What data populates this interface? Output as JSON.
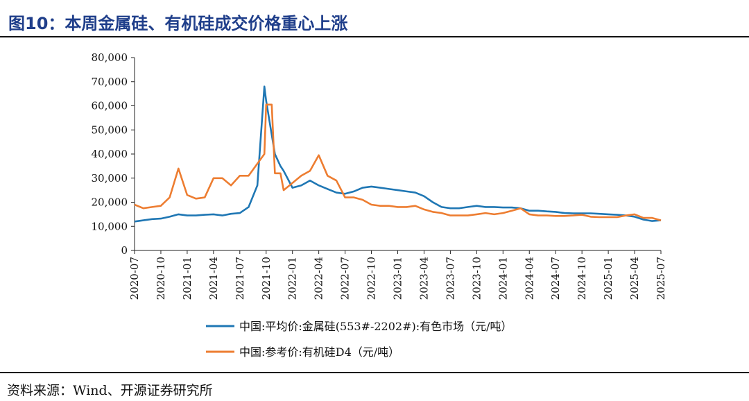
{
  "figure": {
    "title": "图10：本周金属硅、有机硅成交价格重心上涨",
    "source": "资料来源：Wind、开源证券研究所"
  },
  "chart_data": {
    "type": "line",
    "title": "图10：本周金属硅、有机硅成交价格重心上涨",
    "xlabel": "",
    "ylabel": "",
    "ylim": [
      0,
      80000
    ],
    "y_ticks": [
      "0",
      "10,000",
      "20,000",
      "30,000",
      "40,000",
      "50,000",
      "60,000",
      "70,000",
      "80,000"
    ],
    "x_ticks": [
      "2020-07",
      "2020-10",
      "2021-01",
      "2021-04",
      "2021-07",
      "2021-10",
      "2022-01",
      "2022-04",
      "2022-07",
      "2022-10",
      "2023-01",
      "2023-04",
      "2023-07",
      "2023-10",
      "2024-01",
      "2024-04",
      "2024-07",
      "2024-10",
      "2025-01",
      "2025-04",
      "2025-07"
    ],
    "grid": false,
    "legend_position": "bottom",
    "series": [
      {
        "name": "中国:平均价:金属硅(553#-2202#):有色市场（元/吨）",
        "color": "#1f77b4",
        "points": [
          [
            "2020-07",
            12000
          ],
          [
            "2020-08",
            12500
          ],
          [
            "2020-09",
            13000
          ],
          [
            "2020-10",
            13200
          ],
          [
            "2020-11",
            14000
          ],
          [
            "2020-12",
            15000
          ],
          [
            "2021-01",
            14500
          ],
          [
            "2021-02",
            14500
          ],
          [
            "2021-03",
            14800
          ],
          [
            "2021-04",
            15000
          ],
          [
            "2021-05",
            14500
          ],
          [
            "2021-06",
            15200
          ],
          [
            "2021-07",
            15500
          ],
          [
            "2021-08",
            18000
          ],
          [
            "2021-09",
            27000
          ],
          [
            "2021-09-25",
            68000
          ],
          [
            "2021-10",
            62000
          ],
          [
            "2021-10-20",
            48000
          ],
          [
            "2021-11",
            40000
          ],
          [
            "2021-11-20",
            35000
          ],
          [
            "2021-12",
            33000
          ],
          [
            "2022-01",
            26000
          ],
          [
            "2022-02",
            27000
          ],
          [
            "2022-03",
            29000
          ],
          [
            "2022-04",
            27000
          ],
          [
            "2022-05",
            25500
          ],
          [
            "2022-06",
            24000
          ],
          [
            "2022-07",
            23500
          ],
          [
            "2022-08",
            24500
          ],
          [
            "2022-09",
            26000
          ],
          [
            "2022-10",
            26500
          ],
          [
            "2022-11",
            26000
          ],
          [
            "2022-12",
            25500
          ],
          [
            "2023-01",
            25000
          ],
          [
            "2023-02",
            24500
          ],
          [
            "2023-03",
            24000
          ],
          [
            "2023-04",
            22500
          ],
          [
            "2023-05",
            20000
          ],
          [
            "2023-06",
            18000
          ],
          [
            "2023-07",
            17500
          ],
          [
            "2023-08",
            17500
          ],
          [
            "2023-09",
            18000
          ],
          [
            "2023-10",
            18500
          ],
          [
            "2023-11",
            18000
          ],
          [
            "2023-12",
            18000
          ],
          [
            "2024-01",
            17800
          ],
          [
            "2024-02",
            17800
          ],
          [
            "2024-03",
            17500
          ],
          [
            "2024-04",
            16500
          ],
          [
            "2024-05",
            16500
          ],
          [
            "2024-06",
            16200
          ],
          [
            "2024-07",
            16000
          ],
          [
            "2024-08",
            15500
          ],
          [
            "2024-09",
            15400
          ],
          [
            "2024-10",
            15400
          ],
          [
            "2024-11",
            15400
          ],
          [
            "2024-12",
            15200
          ],
          [
            "2025-01",
            15000
          ],
          [
            "2025-02",
            14800
          ],
          [
            "2025-03",
            14500
          ],
          [
            "2025-04",
            14000
          ],
          [
            "2025-05",
            12800
          ],
          [
            "2025-06",
            12200
          ],
          [
            "2025-07",
            12500
          ]
        ]
      },
      {
        "name": "中国:参考价:有机硅D4（元/吨）",
        "color": "#ed7d31",
        "points": [
          [
            "2020-07",
            19000
          ],
          [
            "2020-08",
            17500
          ],
          [
            "2020-09",
            18000
          ],
          [
            "2020-10",
            18500
          ],
          [
            "2020-11",
            22000
          ],
          [
            "2020-12",
            34000
          ],
          [
            "2021-01",
            23000
          ],
          [
            "2021-02",
            21500
          ],
          [
            "2021-03",
            22000
          ],
          [
            "2021-04",
            30000
          ],
          [
            "2021-05",
            30000
          ],
          [
            "2021-06",
            27000
          ],
          [
            "2021-07",
            31000
          ],
          [
            "2021-08",
            31000
          ],
          [
            "2021-09",
            36000
          ],
          [
            "2021-09-25",
            40000
          ],
          [
            "2021-10",
            60500
          ],
          [
            "2021-10-20",
            60500
          ],
          [
            "2021-11",
            32000
          ],
          [
            "2021-11-20",
            32000
          ],
          [
            "2021-12",
            25000
          ],
          [
            "2022-01",
            28000
          ],
          [
            "2022-02",
            31000
          ],
          [
            "2022-03",
            33000
          ],
          [
            "2022-04",
            39500
          ],
          [
            "2022-05",
            31000
          ],
          [
            "2022-06",
            29000
          ],
          [
            "2022-07",
            22000
          ],
          [
            "2022-08",
            22000
          ],
          [
            "2022-09",
            21000
          ],
          [
            "2022-10",
            19000
          ],
          [
            "2022-11",
            18500
          ],
          [
            "2022-12",
            18500
          ],
          [
            "2023-01",
            18000
          ],
          [
            "2023-02",
            18000
          ],
          [
            "2023-03",
            18500
          ],
          [
            "2023-04",
            17000
          ],
          [
            "2023-05",
            16000
          ],
          [
            "2023-06",
            15500
          ],
          [
            "2023-07",
            14500
          ],
          [
            "2023-08",
            14500
          ],
          [
            "2023-09",
            14500
          ],
          [
            "2023-10",
            15000
          ],
          [
            "2023-11",
            15500
          ],
          [
            "2023-12",
            15000
          ],
          [
            "2024-01",
            15500
          ],
          [
            "2024-02",
            16500
          ],
          [
            "2024-03",
            17500
          ],
          [
            "2024-04",
            15000
          ],
          [
            "2024-05",
            14500
          ],
          [
            "2024-06",
            14500
          ],
          [
            "2024-07",
            14300
          ],
          [
            "2024-08",
            14300
          ],
          [
            "2024-09",
            14500
          ],
          [
            "2024-10",
            14800
          ],
          [
            "2024-11",
            14000
          ],
          [
            "2024-12",
            13800
          ],
          [
            "2025-01",
            13800
          ],
          [
            "2025-02",
            13800
          ],
          [
            "2025-03",
            14500
          ],
          [
            "2025-04",
            15000
          ],
          [
            "2025-05",
            13500
          ],
          [
            "2025-06",
            13500
          ],
          [
            "2025-07",
            12500
          ]
        ]
      }
    ]
  }
}
